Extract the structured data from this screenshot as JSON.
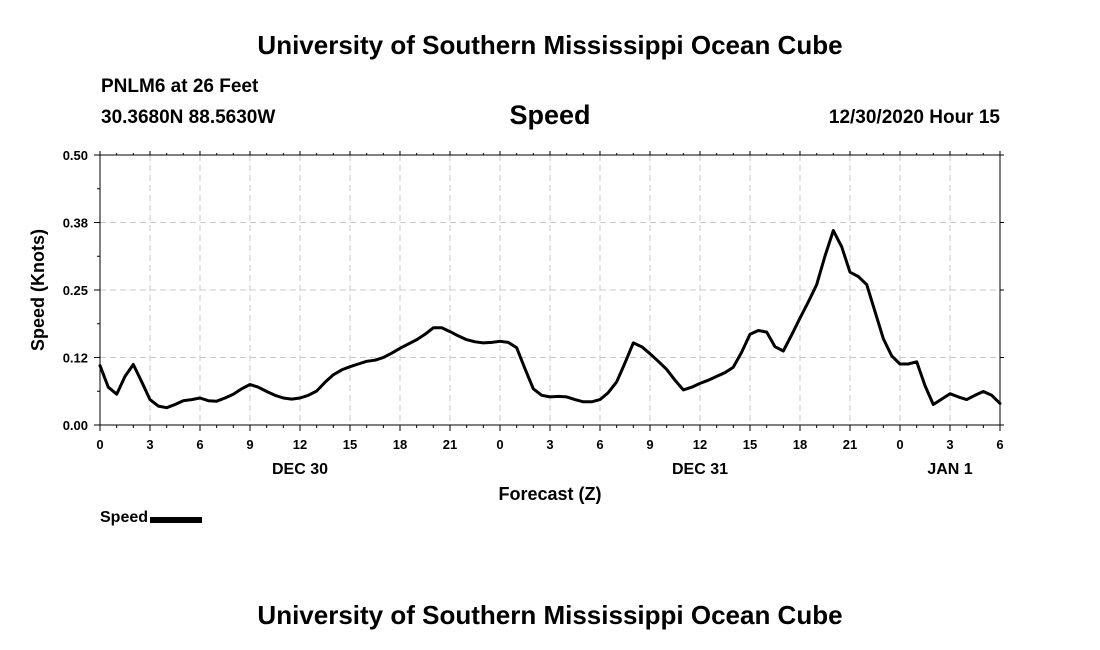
{
  "header": {
    "title": "University of Southern Mississippi Ocean Cube",
    "station": "PNLM6 at 26 Feet",
    "coords": "30.3680N 88.5630W",
    "chart_title": "Speed",
    "timestamp": "12/30/2020 Hour 15"
  },
  "footer": {
    "title": "University of Southern Mississippi Ocean Cube"
  },
  "legend": {
    "label": "Speed"
  },
  "colors": {
    "line": "#000000",
    "grid": "#c8c8c8"
  },
  "chart_data": {
    "type": "line",
    "title": "Speed",
    "xlabel": "Forecast (Z)",
    "ylabel": "Speed (Knots)",
    "xlim": [
      0,
      54
    ],
    "ylim": [
      0,
      0.5
    ],
    "grid": true,
    "legend_position": "bottom-left",
    "yticks": [
      0,
      0.125,
      0.25,
      0.375,
      0.5
    ],
    "ytick_labels": [
      "0.00",
      "0.12",
      "0.25",
      "0.38",
      "0.50"
    ],
    "xticks": [
      0,
      3,
      6,
      9,
      12,
      15,
      18,
      21,
      24,
      27,
      30,
      33,
      36,
      39,
      42,
      45,
      48,
      51,
      54
    ],
    "xtick_labels": [
      "0",
      "3",
      "6",
      "9",
      "12",
      "15",
      "18",
      "21",
      "0",
      "3",
      "6",
      "9",
      "12",
      "15",
      "18",
      "21",
      "0",
      "3",
      "6"
    ],
    "day_labels": [
      {
        "x": 12,
        "label": "DEC 30"
      },
      {
        "x": 36,
        "label": "DEC 31"
      },
      {
        "x": 51,
        "label": "JAN 1"
      }
    ],
    "series": [
      {
        "name": "Speed",
        "x": [
          0,
          0.5,
          1,
          1.5,
          2,
          2.5,
          3,
          3.5,
          4,
          4.5,
          5,
          5.5,
          6,
          6.5,
          7,
          7.5,
          8,
          8.5,
          9,
          9.5,
          10,
          10.5,
          11,
          11.5,
          12,
          12.5,
          13,
          13.5,
          14,
          14.5,
          15,
          15.5,
          16,
          16.5,
          17,
          17.5,
          18,
          18.5,
          19,
          19.5,
          20,
          20.5,
          21,
          21.5,
          22,
          22.5,
          23,
          23.5,
          24,
          24.5,
          25,
          25.5,
          26,
          26.5,
          27,
          27.5,
          28,
          28.5,
          29,
          29.5,
          30,
          30.5,
          31,
          31.5,
          32,
          32.5,
          33,
          33.5,
          34,
          34.5,
          35,
          35.5,
          36,
          36.5,
          37,
          37.5,
          38,
          38.5,
          39,
          39.5,
          40,
          40.5,
          41,
          41.5,
          42,
          42.5,
          43,
          43.5,
          44,
          44.5,
          45,
          45.5,
          46,
          46.5,
          47,
          47.5,
          48,
          48.5,
          49,
          49.5,
          50,
          50.5,
          51,
          51.5,
          52,
          52.5,
          53,
          53.5,
          54
        ],
        "values": [
          0.11,
          0.07,
          0.057,
          0.09,
          0.112,
          0.08,
          0.047,
          0.035,
          0.032,
          0.038,
          0.045,
          0.047,
          0.05,
          0.045,
          0.044,
          0.05,
          0.057,
          0.067,
          0.075,
          0.07,
          0.062,
          0.055,
          0.05,
          0.048,
          0.05,
          0.055,
          0.063,
          0.079,
          0.093,
          0.102,
          0.108,
          0.113,
          0.118,
          0.12,
          0.125,
          0.133,
          0.142,
          0.15,
          0.158,
          0.168,
          0.18,
          0.18,
          0.173,
          0.165,
          0.158,
          0.154,
          0.152,
          0.153,
          0.155,
          0.153,
          0.143,
          0.104,
          0.067,
          0.055,
          0.052,
          0.053,
          0.052,
          0.047,
          0.043,
          0.043,
          0.047,
          0.06,
          0.08,
          0.115,
          0.152,
          0.145,
          0.132,
          0.118,
          0.103,
          0.083,
          0.065,
          0.07,
          0.077,
          0.083,
          0.09,
          0.097,
          0.107,
          0.135,
          0.168,
          0.175,
          0.172,
          0.145,
          0.137,
          0.167,
          0.198,
          0.228,
          0.26,
          0.313,
          0.36,
          0.33,
          0.283,
          0.275,
          0.26,
          0.21,
          0.16,
          0.128,
          0.113,
          0.113,
          0.117,
          0.073,
          0.038,
          0.048,
          0.058,
          0.052,
          0.047,
          0.055,
          0.062,
          0.055,
          0.04
        ]
      }
    ]
  }
}
